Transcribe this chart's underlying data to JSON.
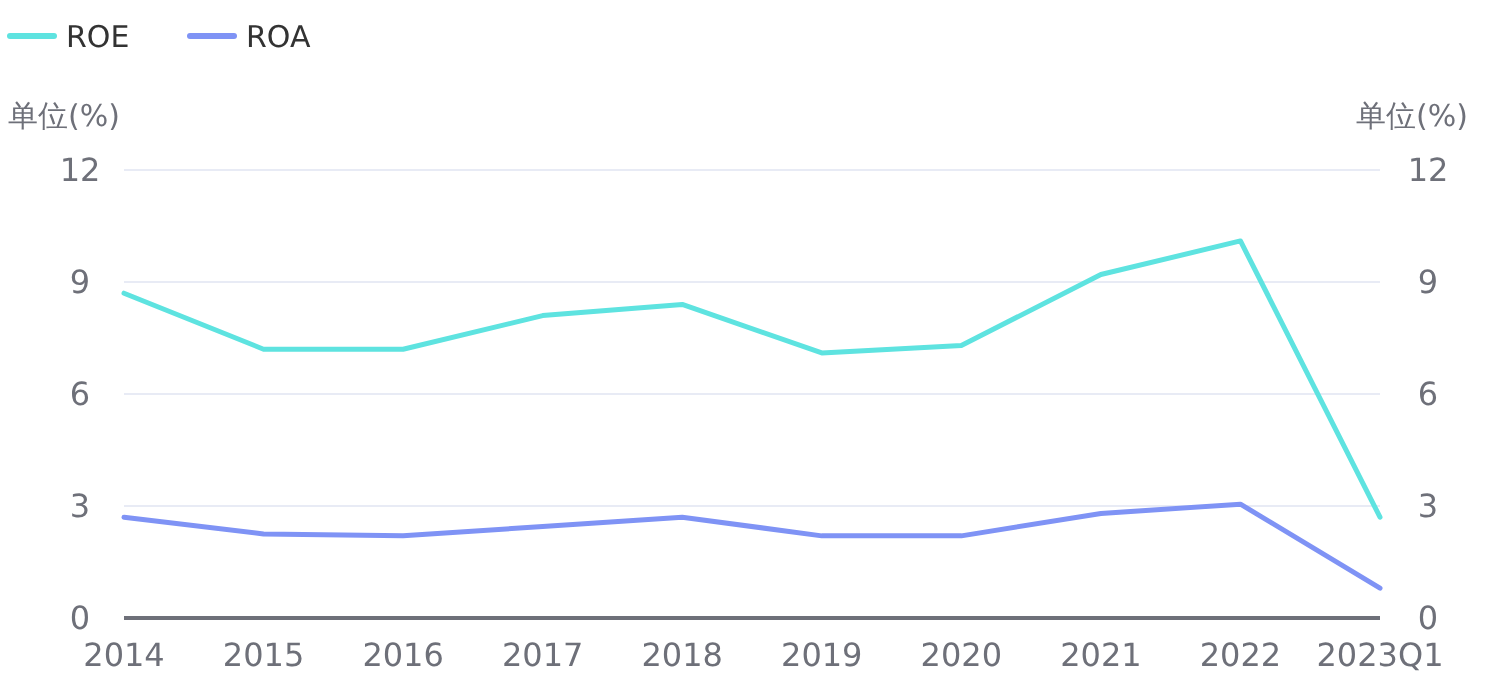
{
  "chart_data": {
    "type": "line",
    "ylabel": "单位(%)",
    "y2label": "单位(%)",
    "categories": [
      "2014",
      "2015",
      "2016",
      "2017",
      "2018",
      "2019",
      "2020",
      "2021",
      "2022",
      "2023Q1"
    ],
    "series": [
      {
        "name": "ROE",
        "color": "#5ee3e0",
        "values": [
          8.7,
          7.2,
          7.2,
          8.1,
          8.4,
          7.1,
          7.3,
          9.2,
          10.1,
          2.7
        ]
      },
      {
        "name": "ROA",
        "color": "#7f93f5",
        "values": [
          2.7,
          2.25,
          2.2,
          2.45,
          2.7,
          2.2,
          2.2,
          2.8,
          3.05,
          0.8
        ]
      }
    ],
    "ylim": [
      0,
      12
    ],
    "yticks": [
      0,
      3,
      6,
      9,
      12
    ],
    "y2lim": [
      0,
      12
    ],
    "y2ticks": [
      0,
      3,
      6,
      9,
      12
    ],
    "grid": "y",
    "legend": "top left",
    "marker": "none",
    "line_style": "solid"
  }
}
